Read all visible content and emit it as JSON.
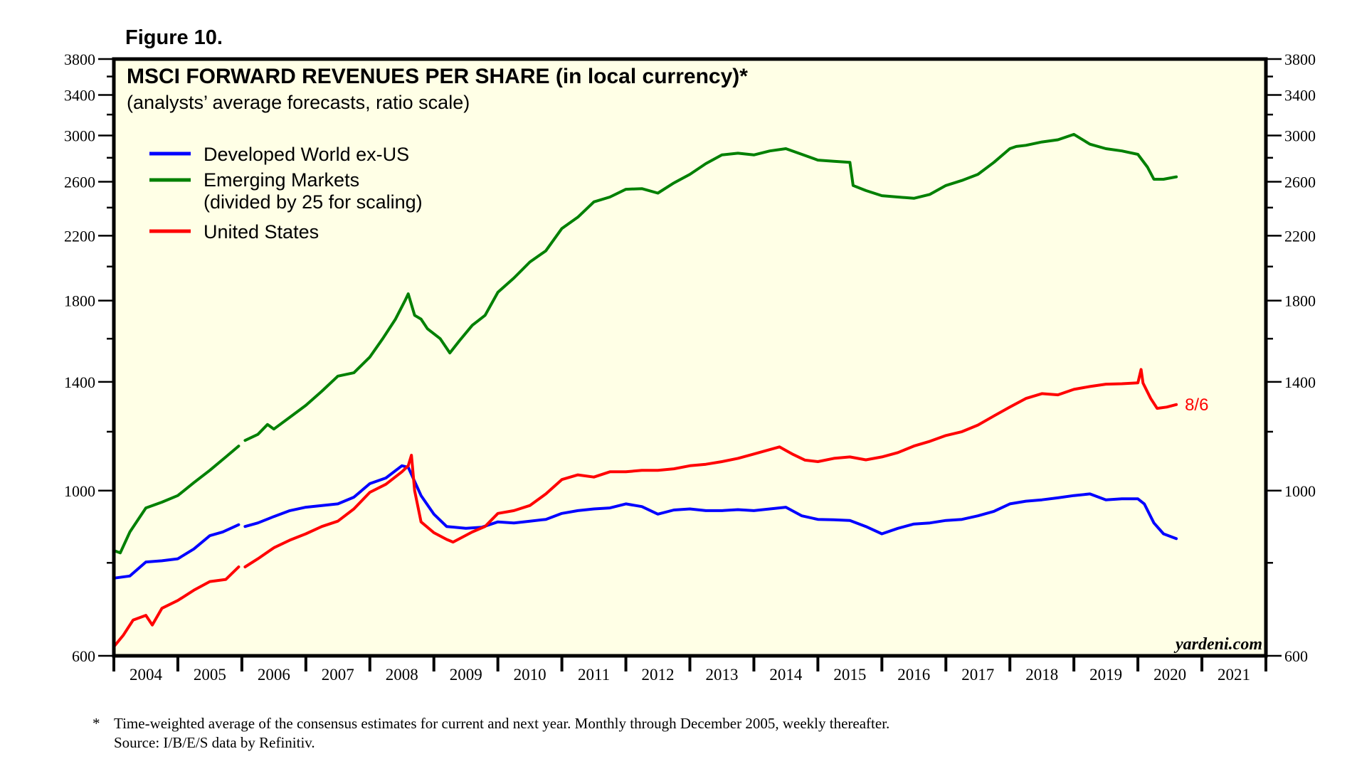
{
  "figure_label": "Figure 10.",
  "chart_data": {
    "type": "line",
    "title": "MSCI FORWARD REVENUES PER SHARE (in local currency)*",
    "subtitle": "(analysts’ average forecasts, ratio scale)",
    "xlabel": "",
    "ylabel": "",
    "yscale": "log",
    "ylim": [
      600,
      3800
    ],
    "xlim": [
      2004,
      2022
    ],
    "y_ticks_major": [
      600,
      1000,
      1400,
      1800,
      2200,
      2600,
      3000,
      3400,
      3800
    ],
    "y_ticks_minor": [
      800,
      1200,
      1600,
      2000,
      2400,
      2800,
      3200,
      3600
    ],
    "y_tick_labels": [
      "600",
      "1000",
      "1400",
      "1800",
      "2200",
      "2600",
      "3000",
      "3400",
      "3800"
    ],
    "x_tick_labels": [
      "2004",
      "2005",
      "2006",
      "2007",
      "2008",
      "2009",
      "2010",
      "2011",
      "2012",
      "2013",
      "2014",
      "2015",
      "2016",
      "2017",
      "2018",
      "2019",
      "2020",
      "2021"
    ],
    "grid": false,
    "legend_position": "top-left",
    "background_color": "#ffffe6",
    "series": [
      {
        "name": "Developed World ex-US",
        "color": "#0000ff",
        "segments": [
          {
            "x": [
              2004.0,
              2004.25,
              2004.5,
              2004.75,
              2005.0,
              2005.25,
              2005.5,
              2005.7,
              2005.95
            ],
            "y": [
              763,
              768,
              802,
              805,
              810,
              835,
              870,
              880,
              900
            ]
          },
          {
            "x": [
              2006.05,
              2006.25,
              2006.5,
              2006.75,
              2007.0,
              2007.25,
              2007.5,
              2007.75,
              2008.0,
              2008.25,
              2008.5,
              2008.6,
              2008.8,
              2009.0,
              2009.2,
              2009.5,
              2009.75,
              2010.0,
              2010.25,
              2010.5,
              2010.75,
              2011.0,
              2011.25,
              2011.5,
              2011.75,
              2012.0,
              2012.25,
              2012.5,
              2012.75,
              2013.0,
              2013.25,
              2013.5,
              2013.75,
              2014.0,
              2014.25,
              2014.5,
              2014.75,
              2015.0,
              2015.25,
              2015.5,
              2015.75,
              2016.0,
              2016.25,
              2016.5,
              2016.75,
              2017.0,
              2017.25,
              2017.5,
              2017.75,
              2018.0,
              2018.25,
              2018.5,
              2018.75,
              2019.0,
              2019.25,
              2019.5,
              2019.75,
              2020.0,
              2020.1,
              2020.25,
              2020.4,
              2020.6
            ],
            "y": [
              895,
              905,
              923,
              940,
              950,
              955,
              960,
              980,
              1022,
              1040,
              1080,
              1075,
              985,
              930,
              895,
              890,
              893,
              908,
              905,
              910,
              915,
              932,
              940,
              945,
              948,
              960,
              952,
              930,
              942,
              945,
              940,
              940,
              943,
              940,
              945,
              950,
              925,
              915,
              914,
              912,
              895,
              875,
              890,
              902,
              905,
              912,
              915,
              925,
              938,
              960,
              968,
              972,
              978,
              985,
              990,
              972,
              975,
              975,
              960,
              905,
              875,
              862
            ]
          }
        ]
      },
      {
        "name": "Emerging Markets (divided by 25 for scaling)",
        "color": "#008000",
        "segments": [
          {
            "x": [
              2004.0,
              2004.1,
              2004.25,
              2004.5,
              2004.75,
              2005.0,
              2005.25,
              2005.5,
              2005.75,
              2005.95
            ],
            "y": [
              831,
              825,
              880,
              948,
              965,
              985,
              1025,
              1065,
              1110,
              1148
            ]
          },
          {
            "x": [
              2006.05,
              2006.25,
              2006.4,
              2006.5,
              2006.75,
              2007.0,
              2007.25,
              2007.5,
              2007.75,
              2008.0,
              2008.2,
              2008.4,
              2008.55,
              2008.6,
              2008.7,
              2008.8,
              2008.9,
              2009.1,
              2009.25,
              2009.4,
              2009.6,
              2009.8,
              2010.0,
              2010.25,
              2010.5,
              2010.75,
              2011.0,
              2011.25,
              2011.5,
              2011.75,
              2012.0,
              2012.25,
              2012.5,
              2012.75,
              2013.0,
              2013.25,
              2013.5,
              2013.75,
              2014.0,
              2014.25,
              2014.5,
              2014.75,
              2015.0,
              2015.25,
              2015.5,
              2015.55,
              2015.75,
              2016.0,
              2016.25,
              2016.5,
              2016.75,
              2017.0,
              2017.25,
              2017.5,
              2017.75,
              2018.0,
              2018.1,
              2018.25,
              2018.5,
              2018.75,
              2019.0,
              2019.25,
              2019.5,
              2019.75,
              2020.0,
              2020.15,
              2020.25,
              2020.4,
              2020.6
            ],
            "y": [
              1168,
              1190,
              1227,
              1210,
              1255,
              1302,
              1360,
              1425,
              1440,
              1512,
              1600,
              1700,
              1800,
              1838,
              1720,
              1700,
              1650,
              1600,
              1531,
              1590,
              1668,
              1720,
              1847,
              1930,
              2028,
              2100,
              2250,
              2330,
              2443,
              2480,
              2540,
              2545,
              2510,
              2590,
              2660,
              2750,
              2825,
              2840,
              2825,
              2860,
              2880,
              2830,
              2780,
              2770,
              2760,
              2570,
              2530,
              2490,
              2480,
              2470,
              2500,
              2570,
              2610,
              2660,
              2760,
              2880,
              2900,
              2910,
              2940,
              2960,
              3010,
              2920,
              2880,
              2860,
              2830,
              2720,
              2620,
              2620,
              2640
            ]
          }
        ]
      },
      {
        "name": "United States",
        "color": "#ff0000",
        "end_label": "8/6",
        "segments": [
          {
            "x": [
              2004.0,
              2004.15,
              2004.3,
              2004.5,
              2004.6,
              2004.75,
              2005.0,
              2005.25,
              2005.5,
              2005.75,
              2005.95
            ],
            "y": [
              617,
              640,
              670,
              680,
              660,
              695,
              712,
              735,
              755,
              760,
              790
            ]
          },
          {
            "x": [
              2006.05,
              2006.25,
              2006.5,
              2006.75,
              2007.0,
              2007.25,
              2007.5,
              2007.75,
              2008.0,
              2008.25,
              2008.5,
              2008.6,
              2008.65,
              2008.7,
              2008.8,
              2009.0,
              2009.2,
              2009.3,
              2009.6,
              2009.8,
              2010.0,
              2010.25,
              2010.5,
              2010.75,
              2011.0,
              2011.25,
              2011.5,
              2011.75,
              2012.0,
              2012.25,
              2012.5,
              2012.75,
              2013.0,
              2013.25,
              2013.5,
              2013.75,
              2014.0,
              2014.4,
              2014.6,
              2014.8,
              2015.0,
              2015.25,
              2015.5,
              2015.75,
              2016.0,
              2016.25,
              2016.5,
              2016.75,
              2017.0,
              2017.25,
              2017.5,
              2017.75,
              2018.0,
              2018.25,
              2018.5,
              2018.75,
              2019.0,
              2019.25,
              2019.5,
              2019.75,
              2020.0,
              2020.05,
              2020.08,
              2020.2,
              2020.3,
              2020.45,
              2020.6
            ],
            "y": [
              790,
              810,
              838,
              858,
              875,
              895,
              910,
              945,
              995,
              1020,
              1060,
              1080,
              1116,
              1000,
              908,
              878,
              860,
              853,
              880,
              895,
              932,
              940,
              955,
              990,
              1035,
              1050,
              1043,
              1060,
              1060,
              1065,
              1065,
              1070,
              1080,
              1085,
              1094,
              1105,
              1120,
              1145,
              1120,
              1099,
              1094,
              1105,
              1110,
              1100,
              1110,
              1125,
              1148,
              1165,
              1186,
              1200,
              1225,
              1260,
              1295,
              1330,
              1350,
              1345,
              1368,
              1380,
              1390,
              1392,
              1396,
              1455,
              1395,
              1330,
              1290,
              1295,
              1305
            ]
          }
        ]
      }
    ],
    "annotations": [
      "8/6",
      "yardeni.com"
    ]
  },
  "legend": {
    "items": [
      {
        "label": "Developed World ex-US",
        "color": "#0000ff"
      },
      {
        "label": "Emerging Markets",
        "label2": "(divided by 25 for scaling)",
        "color": "#008000"
      },
      {
        "label": "United States",
        "color": "#ff0000"
      }
    ]
  },
  "watermark": "yardeni.com",
  "footnote": {
    "marker": "*",
    "line1": "Time-weighted average of the consensus estimates for current and next year. Monthly through December 2005, weekly thereafter.",
    "line2": "Source: I/B/E/S data by Refinitiv."
  }
}
